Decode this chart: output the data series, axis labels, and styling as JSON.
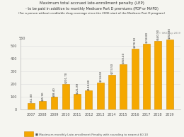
{
  "title_line1": "Maximum total accrued late-enrollment penalty (LEP)",
  "title_line2": "- to be paid in addition to monthly Medicare Part D premiums (PDP or MAPD)",
  "title_line3": "(For a person without creditable drug coverage since the 2006 start of the Medicare Part D program)",
  "source_text": "© GKGroup 2019",
  "years": [
    "2007",
    "2008",
    "2009",
    "2010",
    "2011",
    "2012",
    "2013",
    "2014",
    "2015",
    "2016",
    "2017",
    "2018",
    "2019"
  ],
  "values": [
    51.8,
    65.9,
    98.4,
    201.7,
    121.89,
    148.8,
    214.6,
    273.5,
    358.4,
    478.1,
    518.8,
    540.9,
    550.8
  ],
  "bar_color": "#F5A800",
  "bar_edge_color": "#CC8800",
  "labels": [
    "$51.80",
    "$65.90",
    "$98.40",
    "$201.70",
    "$121.89",
    "$148.80",
    "$214.60",
    "$273.50",
    "$358.40",
    "$478.10",
    "$518.80",
    "$540.90",
    "$550.80"
  ],
  "ylim": [
    0,
    560
  ],
  "yticks": [
    0,
    100,
    200,
    300,
    400,
    500
  ],
  "ytick_label_top": "560",
  "legend_label": "Maximum monthly Late-enrollment Penalty with rounding to nearest $0.10",
  "background_color": "#f5f5f0",
  "grid_color": "#dddddd",
  "title_color": "#333333",
  "axis_color": "#555555"
}
